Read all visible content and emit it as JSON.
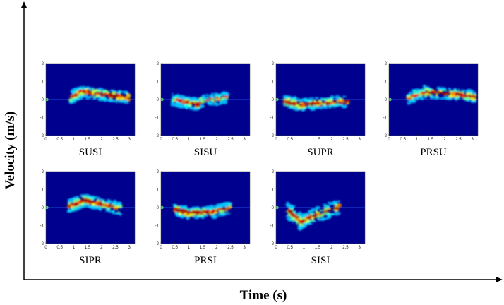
{
  "chart_data": {
    "type": "heatmap",
    "xlabel": "Time (s)",
    "ylabel": "Velocity (m/s)",
    "colormap": "jet",
    "background_color": "#00008f",
    "panels": [
      {
        "label": "SUSI",
        "xlim": [
          0,
          3.2
        ],
        "ylim": [
          -2,
          2
        ],
        "x_ticks": [
          "0",
          "0.5",
          "1",
          "1.5",
          "2",
          "2.5",
          "3"
        ],
        "y_ticks": [
          "2",
          "1",
          "0",
          "-1",
          "-2"
        ],
        "segments": [
          {
            "x": [
              0.9,
              1.3
            ],
            "v": [
              0.1,
              0.45
            ],
            "intensity": 0.7
          },
          {
            "x": [
              1.3,
              2.2
            ],
            "v": [
              0.45,
              0.25
            ],
            "intensity": 0.85
          },
          {
            "x": [
              2.2,
              3.0
            ],
            "v": [
              0.25,
              0.1
            ],
            "intensity": 0.95
          }
        ]
      },
      {
        "label": "SISU",
        "xlim": [
          0,
          3.2
        ],
        "ylim": [
          -2,
          2
        ],
        "x_ticks": [
          "0",
          "0.5",
          "1",
          "1.5",
          "2",
          "2.5",
          "3"
        ],
        "y_ticks": [
          "2",
          "1",
          "0",
          "-1",
          "-2"
        ],
        "segments": [
          {
            "x": [
              0.4,
              0.9
            ],
            "v": [
              0.0,
              -0.15
            ],
            "intensity": 0.6
          },
          {
            "x": [
              0.9,
              1.4
            ],
            "v": [
              -0.15,
              -0.3
            ],
            "intensity": 0.85
          },
          {
            "x": [
              1.4,
              2.4
            ],
            "v": [
              -0.1,
              0.1
            ],
            "intensity": 0.6
          }
        ]
      },
      {
        "label": "SUPR",
        "xlim": [
          0,
          3.2
        ],
        "ylim": [
          -2,
          2
        ],
        "x_ticks": [
          "0",
          "0.5",
          "1",
          "1.5",
          "2",
          "2.5",
          "3"
        ],
        "y_ticks": [
          "2",
          "1",
          "0",
          "-1",
          "-2"
        ],
        "segments": [
          {
            "x": [
              0.3,
              0.9
            ],
            "v": [
              -0.1,
              -0.3
            ],
            "intensity": 0.9
          },
          {
            "x": [
              0.9,
              1.6
            ],
            "v": [
              -0.3,
              -0.2
            ],
            "intensity": 0.85
          },
          {
            "x": [
              1.6,
              2.6
            ],
            "v": [
              -0.2,
              -0.1
            ],
            "intensity": 0.8
          }
        ]
      },
      {
        "label": "PRSU",
        "xlim": [
          0,
          3.2
        ],
        "ylim": [
          -2,
          2
        ],
        "x_ticks": [
          "0",
          "0.5",
          "1",
          "1.5",
          "2",
          "2.5",
          "3"
        ],
        "y_ticks": [
          "2",
          "1",
          "0",
          "-1",
          "-2"
        ],
        "segments": [
          {
            "x": [
              0.7,
              1.3
            ],
            "v": [
              0.1,
              0.4
            ],
            "intensity": 0.6
          },
          {
            "x": [
              1.3,
              2.4
            ],
            "v": [
              0.4,
              0.3
            ],
            "intensity": 0.9
          },
          {
            "x": [
              2.4,
              3.1
            ],
            "v": [
              0.3,
              0.15
            ],
            "intensity": 0.9
          }
        ]
      },
      {
        "label": "SIPR",
        "xlim": [
          0,
          3.2
        ],
        "ylim": [
          -2,
          2
        ],
        "x_ticks": [
          "0",
          "0.5",
          "1",
          "1.5",
          "2",
          "2.5",
          "3"
        ],
        "y_ticks": [
          "2",
          "1",
          "0",
          "-1",
          "-2"
        ],
        "segments": [
          {
            "x": [
              0.8,
              1.4
            ],
            "v": [
              0.05,
              0.4
            ],
            "intensity": 0.85
          },
          {
            "x": [
              1.4,
              2.0
            ],
            "v": [
              0.4,
              0.2
            ],
            "intensity": 0.9
          },
          {
            "x": [
              2.0,
              2.7
            ],
            "v": [
              0.2,
              -0.1
            ],
            "intensity": 0.75
          }
        ]
      },
      {
        "label": "PRSI",
        "xlim": [
          0,
          3.2
        ],
        "ylim": [
          -2,
          2
        ],
        "x_ticks": [
          "0",
          "0.5",
          "1",
          "1.5",
          "2",
          "2.5",
          "3"
        ],
        "y_ticks": [
          "2",
          "1",
          "0",
          "-1",
          "-2"
        ],
        "segments": [
          {
            "x": [
              0.5,
              1.0
            ],
            "v": [
              -0.1,
              -0.3
            ],
            "intensity": 0.95
          },
          {
            "x": [
              1.0,
              1.8
            ],
            "v": [
              -0.3,
              -0.25
            ],
            "intensity": 0.9
          },
          {
            "x": [
              1.8,
              2.5
            ],
            "v": [
              -0.25,
              0.0
            ],
            "intensity": 0.7
          }
        ]
      },
      {
        "label": "SISI",
        "xlim": [
          0,
          3.2
        ],
        "ylim": [
          -2,
          2
        ],
        "x_ticks": [
          "0",
          "0.5",
          "1",
          "1.5",
          "2",
          "2.5",
          "3"
        ],
        "y_ticks": [
          "2",
          "1",
          "0",
          "-1",
          "-2"
        ],
        "segments": [
          {
            "x": [
              0.4,
              0.9
            ],
            "v": [
              -0.1,
              -0.8
            ],
            "intensity": 0.85
          },
          {
            "x": [
              0.9,
              1.3
            ],
            "v": [
              -0.8,
              -0.5
            ],
            "intensity": 0.8
          },
          {
            "x": [
              1.3,
              2.3
            ],
            "v": [
              -0.5,
              0.05
            ],
            "intensity": 0.75
          }
        ]
      }
    ]
  }
}
